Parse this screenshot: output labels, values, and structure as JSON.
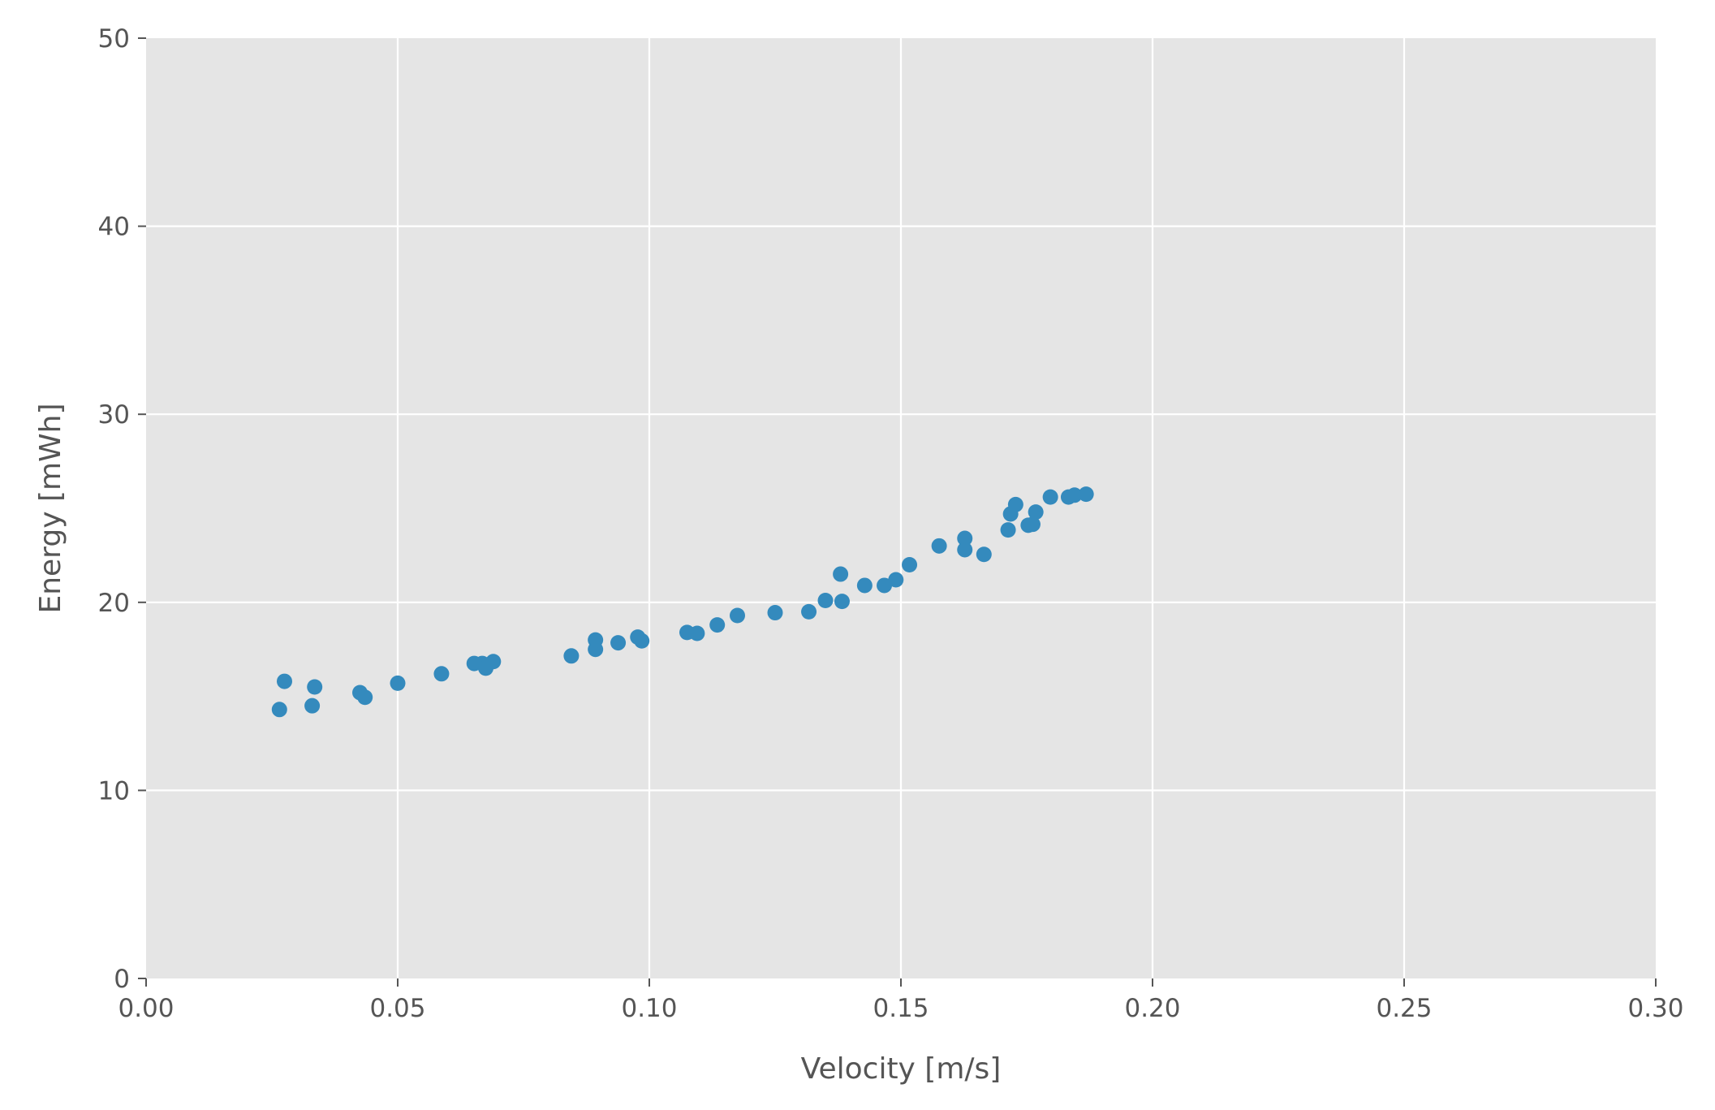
{
  "chart_data": {
    "type": "scatter",
    "title": "",
    "xlabel": "Velocity [m/s]",
    "ylabel": "Energy [mWh]",
    "xlim": [
      0.0,
      0.3
    ],
    "ylim": [
      0,
      50
    ],
    "xticks": [
      0.0,
      0.05,
      0.1,
      0.15,
      0.2,
      0.25,
      0.3
    ],
    "xtick_labels": [
      "0.00",
      "0.05",
      "0.10",
      "0.15",
      "0.20",
      "0.25",
      "0.30"
    ],
    "yticks": [
      0,
      10,
      20,
      30,
      40,
      50
    ],
    "ytick_labels": [
      "0",
      "10",
      "20",
      "30",
      "40",
      "50"
    ],
    "grid": true,
    "style": "ggplot",
    "colors": {
      "background": "#e5e5e5",
      "grid": "#ffffff",
      "marker": "#348abd",
      "text": "#555555"
    },
    "series": [
      {
        "points": [
          [
            0.0265,
            14.3
          ],
          [
            0.0275,
            15.8
          ],
          [
            0.033,
            14.5
          ],
          [
            0.0335,
            15.5
          ],
          [
            0.0425,
            15.2
          ],
          [
            0.0435,
            14.95
          ],
          [
            0.05,
            15.7
          ],
          [
            0.0587,
            16.2
          ],
          [
            0.0652,
            16.75
          ],
          [
            0.0668,
            16.75
          ],
          [
            0.0675,
            16.5
          ],
          [
            0.069,
            16.85
          ],
          [
            0.0845,
            17.15
          ],
          [
            0.0893,
            17.5
          ],
          [
            0.0893,
            18.0
          ],
          [
            0.0938,
            17.85
          ],
          [
            0.0977,
            18.15
          ],
          [
            0.0985,
            17.95
          ],
          [
            0.1075,
            18.4
          ],
          [
            0.1095,
            18.35
          ],
          [
            0.1135,
            18.8
          ],
          [
            0.1175,
            19.3
          ],
          [
            0.125,
            19.45
          ],
          [
            0.1317,
            19.5
          ],
          [
            0.135,
            20.1
          ],
          [
            0.138,
            21.5
          ],
          [
            0.1383,
            20.05
          ],
          [
            0.1428,
            20.9
          ],
          [
            0.1467,
            20.9
          ],
          [
            0.149,
            21.2
          ],
          [
            0.1517,
            22.0
          ],
          [
            0.1576,
            23.0
          ],
          [
            0.1627,
            23.4
          ],
          [
            0.1627,
            22.8
          ],
          [
            0.1665,
            22.55
          ],
          [
            0.1713,
            23.85
          ],
          [
            0.1718,
            24.7
          ],
          [
            0.1728,
            25.2
          ],
          [
            0.1753,
            24.1
          ],
          [
            0.1762,
            24.15
          ],
          [
            0.1768,
            24.8
          ],
          [
            0.1797,
            25.6
          ],
          [
            0.1833,
            25.6
          ],
          [
            0.1845,
            25.7
          ],
          [
            0.1868,
            25.75
          ]
        ]
      }
    ]
  }
}
